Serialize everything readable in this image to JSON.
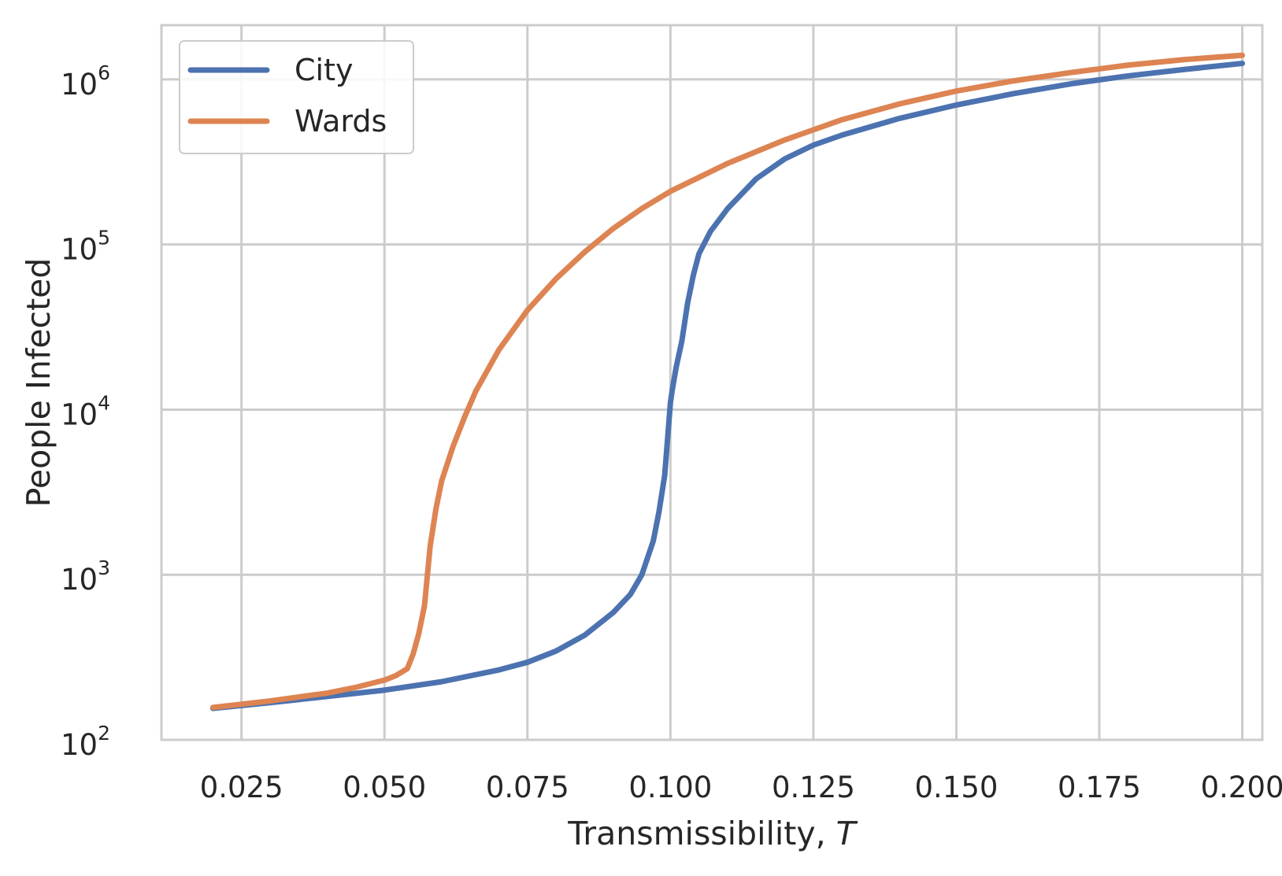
{
  "chart_data": {
    "type": "line",
    "xlabel": "Transmissibility, ",
    "xlabel_var": "T",
    "ylabel": "People Infected",
    "x_scale": "linear",
    "y_scale": "log",
    "xlim": [
      0.011,
      0.2035
    ],
    "ylim": [
      100,
      2130000
    ],
    "grid": true,
    "legend_position": "top-left",
    "x_ticks": [
      0.025,
      0.05,
      0.075,
      0.1,
      0.125,
      0.15,
      0.175,
      0.2
    ],
    "x_tick_labels": [
      "0.025",
      "0.050",
      "0.075",
      "0.100",
      "0.125",
      "0.150",
      "0.175",
      "0.200"
    ],
    "y_ticks": [
      100,
      1000,
      10000,
      100000,
      1000000
    ],
    "y_tick_labels": [
      {
        "base": "10",
        "exp": "2"
      },
      {
        "base": "10",
        "exp": "3"
      },
      {
        "base": "10",
        "exp": "4"
      },
      {
        "base": "10",
        "exp": "5"
      },
      {
        "base": "10",
        "exp": "6"
      }
    ],
    "series": [
      {
        "name": "City",
        "color": "#4c72b0",
        "x": [
          0.02,
          0.03,
          0.04,
          0.05,
          0.06,
          0.07,
          0.075,
          0.08,
          0.085,
          0.09,
          0.093,
          0.095,
          0.097,
          0.098,
          0.099,
          0.1,
          0.1003,
          0.101,
          0.102,
          0.103,
          0.104,
          0.105,
          0.107,
          0.11,
          0.115,
          0.12,
          0.125,
          0.13,
          0.14,
          0.15,
          0.16,
          0.17,
          0.18,
          0.19,
          0.2
        ],
        "y": [
          155,
          168,
          183,
          200,
          225,
          265,
          295,
          345,
          430,
          590,
          760,
          1000,
          1600,
          2400,
          4000,
          11000,
          13000,
          18000,
          26000,
          44000,
          65000,
          88000,
          120000,
          165000,
          250000,
          330000,
          400000,
          460000,
          580000,
          700000,
          820000,
          940000,
          1050000,
          1150000,
          1250000
        ]
      },
      {
        "name": "Wards",
        "color": "#dd8452",
        "x": [
          0.02,
          0.03,
          0.04,
          0.045,
          0.05,
          0.052,
          0.054,
          0.055,
          0.056,
          0.057,
          0.058,
          0.059,
          0.06,
          0.062,
          0.064,
          0.066,
          0.07,
          0.075,
          0.08,
          0.085,
          0.09,
          0.095,
          0.1,
          0.11,
          0.12,
          0.13,
          0.14,
          0.15,
          0.16,
          0.17,
          0.18,
          0.19,
          0.2
        ],
        "y": [
          157,
          172,
          192,
          208,
          230,
          245,
          270,
          330,
          440,
          650,
          1500,
          2500,
          3700,
          6000,
          9000,
          13000,
          23000,
          40000,
          62000,
          90000,
          125000,
          165000,
          210000,
          310000,
          430000,
          570000,
          710000,
          850000,
          980000,
          1100000,
          1220000,
          1320000,
          1400000
        ]
      }
    ]
  }
}
